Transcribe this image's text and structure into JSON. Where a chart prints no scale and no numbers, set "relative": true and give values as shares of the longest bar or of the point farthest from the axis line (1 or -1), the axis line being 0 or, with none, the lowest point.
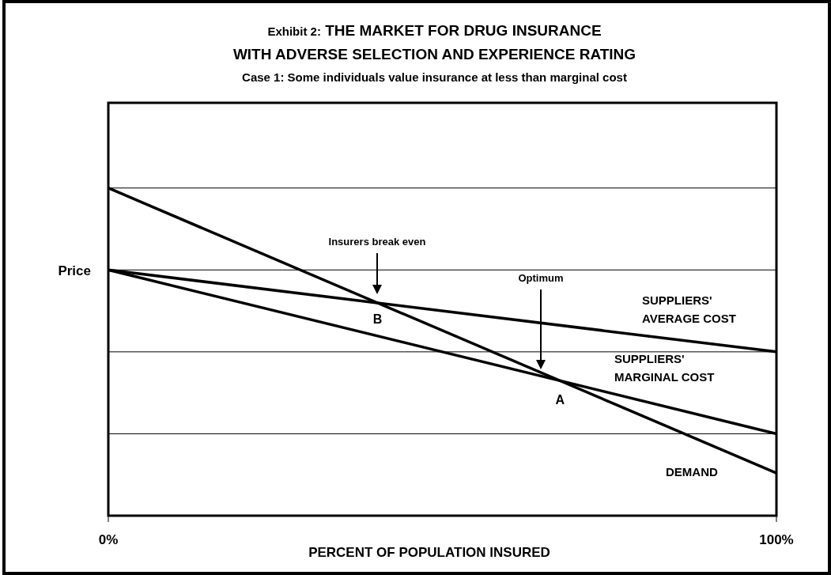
{
  "chart_data": {
    "type": "line",
    "title": "Exhibit 2: THE MARKET FOR DRUG INSURANCE\nWITH ADVERSE SELECTION AND EXPERIENCE RATING",
    "subtitle": "Case 1: Some individuals value insurance at less than marginal cost",
    "xlabel": "PERCENT OF POPULATION INSURED",
    "ylabel": "Price",
    "relative": true,
    "x": [
      0,
      100
    ],
    "xlim": [
      0,
      100
    ],
    "xticks": [
      {
        "value": 0,
        "label": "0%"
      },
      {
        "value": 100,
        "label": "100%"
      }
    ],
    "series": [
      {
        "name": "DEMAND",
        "color": "#000000",
        "values": [
          1,
          0.13
        ]
      },
      {
        "name": "SUPPLIERS' AVERAGE COST",
        "color": "#000000",
        "values": [
          0.75,
          0.5
        ]
      },
      {
        "name": "SUPPLIERS' MARGINAL COST",
        "color": "#000000",
        "values": [
          0.75,
          0.25
        ]
      }
    ],
    "ref_lines": [
      {
        "axis": "y",
        "value": 1,
        "color": "#000000"
      },
      {
        "axis": "y",
        "value": 0.75,
        "color": "#000000"
      },
      {
        "axis": "y",
        "value": 0.5,
        "color": "#000000"
      },
      {
        "axis": "y",
        "value": 0.25,
        "color": "#000000"
      }
    ],
    "annotations": [
      "Insurers break even",
      {
        "text": "B",
        "x": 40.3,
        "y": 0.649
      },
      "Optimum",
      {
        "text": "A",
        "x": 67.6,
        "y": 0.412
      }
    ],
    "legend": false,
    "marker": "none",
    "line_style": "solid"
  }
}
